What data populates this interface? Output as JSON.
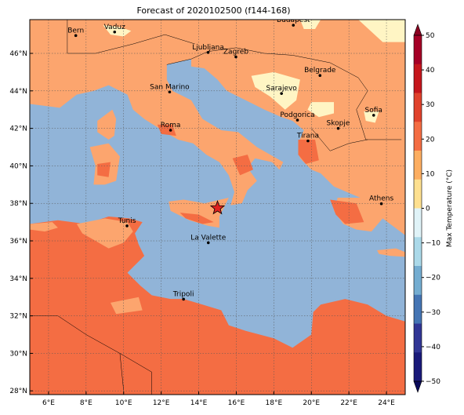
{
  "title": "Forecast of 2020102500 (f144-168)",
  "colorbar": {
    "label": "Max Temperature (°C)",
    "ticks": [
      "50",
      "40",
      "30",
      "20",
      "10",
      "0",
      "−10",
      "−20",
      "−30",
      "−40",
      "−50"
    ],
    "colors": [
      "#a50026",
      "#c5161c",
      "#e0422c",
      "#f46d43",
      "#fdae61",
      "#fee090",
      "#e0f3f8",
      "#abd9e9",
      "#74add1",
      "#4575b4",
      "#313695",
      "#1a1a7a"
    ]
  },
  "axes": {
    "x_ticks": [
      "6°E",
      "8°E",
      "10°E",
      "12°E",
      "14°E",
      "16°E",
      "18°E",
      "20°E",
      "22°E",
      "24°E"
    ],
    "y_ticks": [
      "46°N",
      "44°N",
      "42°N",
      "40°N",
      "38°N",
      "36°N",
      "34°N",
      "32°N",
      "30°N",
      "28°N"
    ]
  },
  "colors": {
    "sea": "#91b4d8",
    "land_20_30": "#f46d43",
    "land_10_20": "#fca56e",
    "land_0_10": "#fff5c4",
    "star": "#e0221e"
  },
  "cities": [
    {
      "name": "Bern",
      "lon": 7.45,
      "lat": 46.95
    },
    {
      "name": "Vaduz",
      "lon": 9.52,
      "lat": 47.14
    },
    {
      "name": "Budapest",
      "lon": 19.04,
      "lat": 47.5
    },
    {
      "name": "Ljubljana",
      "lon": 14.5,
      "lat": 46.05
    },
    {
      "name": "Zagreb",
      "lon": 15.98,
      "lat": 45.81
    },
    {
      "name": "Belgrade",
      "lon": 20.46,
      "lat": 44.82
    },
    {
      "name": "San Marino",
      "lon": 12.45,
      "lat": 43.94
    },
    {
      "name": "Sarajevo",
      "lon": 18.41,
      "lat": 43.86
    },
    {
      "name": "Sofia",
      "lon": 23.32,
      "lat": 42.7
    },
    {
      "name": "Roma",
      "lon": 12.5,
      "lat": 41.9
    },
    {
      "name": "Podgorica",
      "lon": 19.26,
      "lat": 42.44
    },
    {
      "name": "Skopje",
      "lon": 21.43,
      "lat": 42.0
    },
    {
      "name": "Tirana",
      "lon": 19.82,
      "lat": 41.33
    },
    {
      "name": "Athens",
      "lon": 23.73,
      "lat": 37.98
    },
    {
      "name": "Tunis",
      "lon": 10.18,
      "lat": 36.8
    },
    {
      "name": "La Valette",
      "lon": 14.51,
      "lat": 35.9
    },
    {
      "name": "Tripoli",
      "lon": 13.19,
      "lat": 32.89
    }
  ],
  "marker": {
    "name": "star",
    "lon": 15.0,
    "lat": 37.75
  }
}
